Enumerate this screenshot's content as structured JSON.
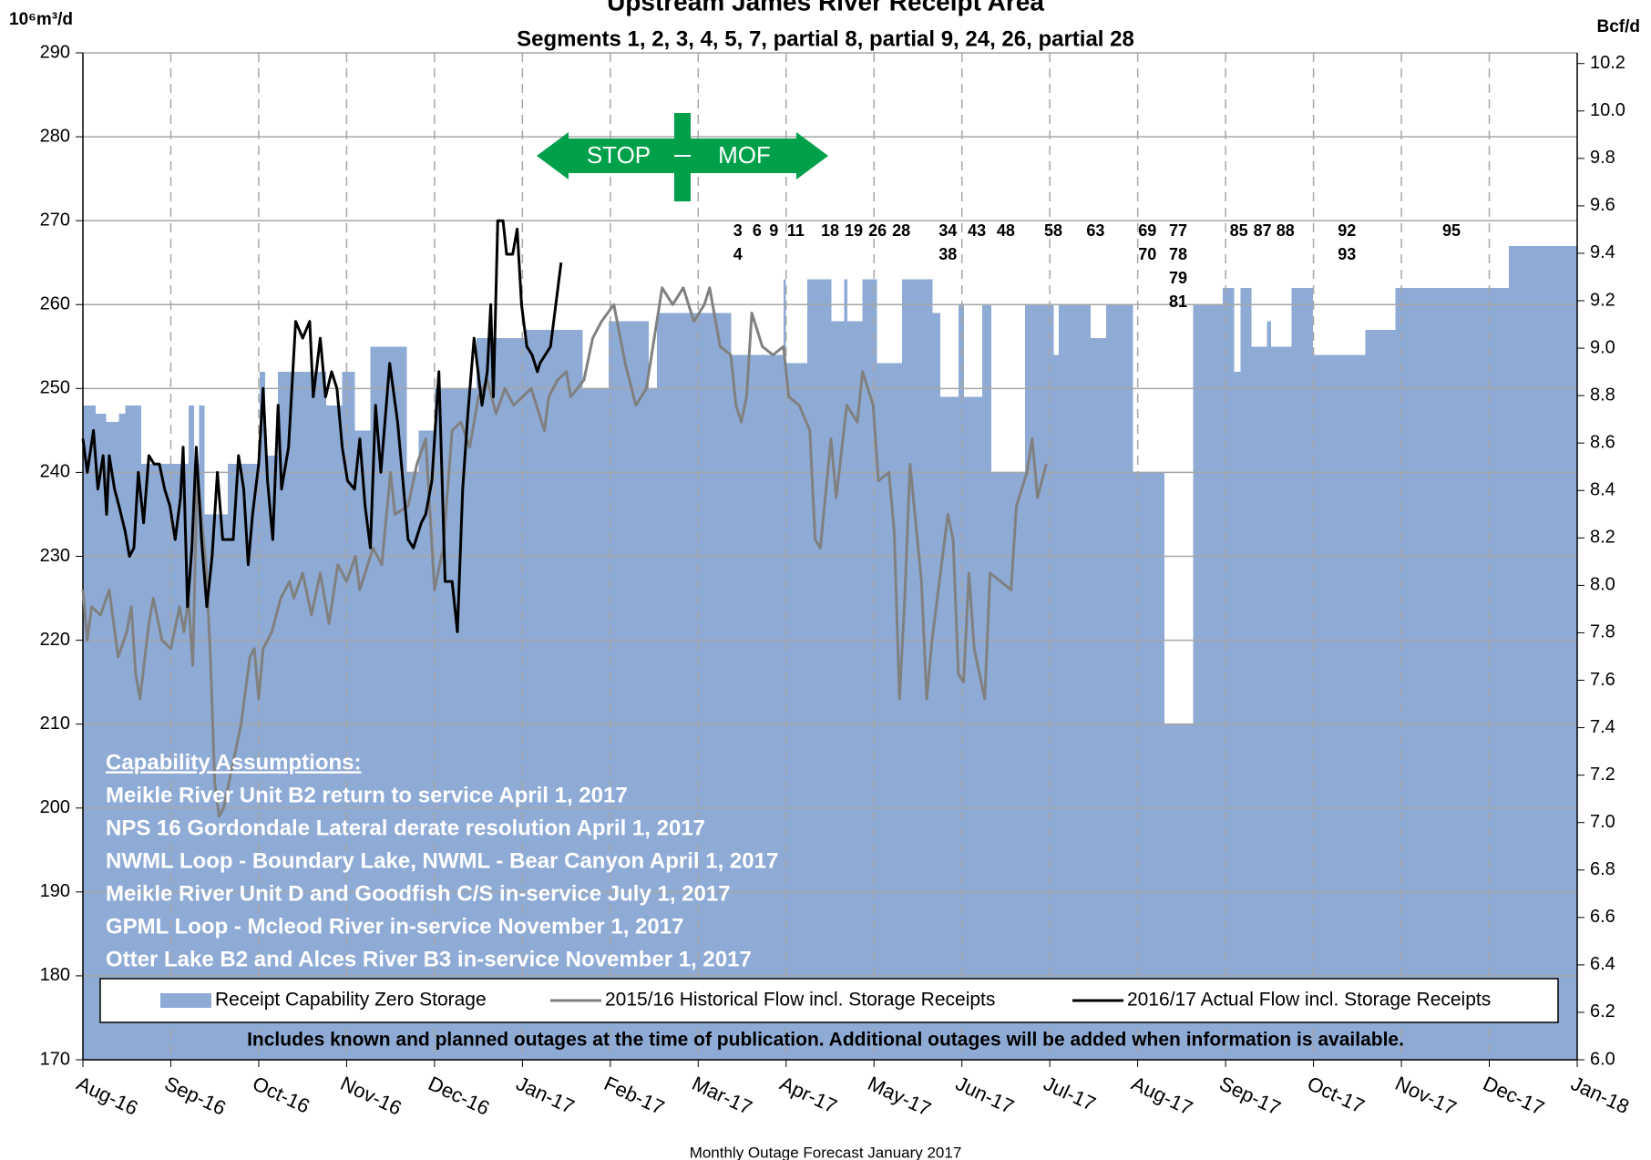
{
  "chart_data": {
    "type": "line",
    "title": "Upstream James River Receipt Area",
    "subtitle": "Segments 1, 2, 3, 4, 5, 7, partial 8, partial 9, 24, 26, partial 28",
    "y_label": "10⁶m³/d",
    "y2_label": "Bcf/d",
    "footer": "Monthly Outage Forecast January 2017",
    "footnote": "Includes known and planned outages at the time of publication. Additional outages will be added when information is available.",
    "legend": "bottom",
    "grid": true,
    "xlim": [
      0,
      17
    ],
    "xticks": [
      {
        "value": 0,
        "label": "Aug-16"
      },
      {
        "value": 1,
        "label": "Sep-16"
      },
      {
        "value": 2,
        "label": "Oct-16"
      },
      {
        "value": 3,
        "label": "Nov-16"
      },
      {
        "value": 4,
        "label": "Dec-16"
      },
      {
        "value": 5,
        "label": "Jan-17"
      },
      {
        "value": 6,
        "label": "Feb-17"
      },
      {
        "value": 7,
        "label": "Mar-17"
      },
      {
        "value": 8,
        "label": "Apr-17"
      },
      {
        "value": 9,
        "label": "May-17"
      },
      {
        "value": 10,
        "label": "Jun-17"
      },
      {
        "value": 11,
        "label": "Jul-17"
      },
      {
        "value": 12,
        "label": "Aug-17"
      },
      {
        "value": 13,
        "label": "Sep-17"
      },
      {
        "value": 14,
        "label": "Oct-17"
      },
      {
        "value": 15,
        "label": "Nov-17"
      },
      {
        "value": 16,
        "label": "Dec-17"
      },
      {
        "value": 17,
        "label": "Jan-18"
      }
    ],
    "ylim": [
      170,
      290
    ],
    "yticks": [
      170,
      180,
      190,
      200,
      210,
      220,
      230,
      240,
      250,
      260,
      270,
      280,
      290
    ],
    "y2lim": [
      6.0,
      10.245
    ],
    "y2ticks": [
      {
        "value": 6.0,
        "label": "6.0"
      },
      {
        "value": 6.2,
        "label": "6.2"
      },
      {
        "value": 6.4,
        "label": "6.4"
      },
      {
        "value": 6.6,
        "label": "6.6"
      },
      {
        "value": 6.8,
        "label": "6.8"
      },
      {
        "value": 7.0,
        "label": "7.0"
      },
      {
        "value": 7.2,
        "label": "7.2"
      },
      {
        "value": 7.4,
        "label": "7.4"
      },
      {
        "value": 7.6,
        "label": "7.6"
      },
      {
        "value": 7.8,
        "label": "7.8"
      },
      {
        "value": 8.0,
        "label": "8.0"
      },
      {
        "value": 8.2,
        "label": "8.2"
      },
      {
        "value": 8.4,
        "label": "8.4"
      },
      {
        "value": 8.6,
        "label": "8.6"
      },
      {
        "value": 8.8,
        "label": "8.8"
      },
      {
        "value": 9.0,
        "label": "9.0"
      },
      {
        "value": 9.2,
        "label": "9.2"
      },
      {
        "value": 9.4,
        "label": "9.4"
      },
      {
        "value": 9.6,
        "label": "9.6"
      },
      {
        "value": 9.8,
        "label": "9.8"
      },
      {
        "value": 10.0,
        "label": "10.0"
      },
      {
        "value": 10.2,
        "label": "10.2"
      }
    ],
    "series": [
      {
        "name": "Receipt Capability Zero Storage",
        "type": "area",
        "color": "#8eabd6",
        "x": [
          0,
          0.14,
          0.26,
          0.41,
          0.48,
          0.66,
          1.2,
          1.26,
          1.32,
          1.38,
          1.65,
          2.01,
          2.07,
          2.22,
          2.76,
          2.95,
          3.09,
          3.27,
          3.68,
          3.82,
          4.0,
          4.48,
          5.02,
          5.68,
          5.98,
          6.43,
          6.53,
          7.37,
          7.97,
          7.99,
          8.24,
          8.51,
          8.66,
          8.69,
          8.87,
          9.03,
          9.32,
          9.66,
          9.75,
          9.96,
          10.02,
          10.23,
          10.33,
          10.72,
          11.04,
          11.1,
          11.46,
          11.64,
          11.94,
          12.3,
          12.63,
          12.97,
          13.09,
          13.17,
          13.29,
          13.47,
          13.51,
          13.75,
          13.99,
          14.59,
          14.93,
          16.22
        ],
        "values": [
          248,
          247,
          246,
          247,
          248,
          241,
          248,
          241,
          248,
          235,
          241,
          252,
          242,
          252,
          248,
          252,
          245,
          255,
          240,
          245,
          250,
          256,
          257,
          250,
          258,
          250,
          259,
          254,
          263,
          253,
          263,
          258,
          263,
          258,
          263,
          253,
          263,
          259,
          249,
          260,
          249,
          260,
          240,
          260,
          254,
          260,
          256,
          260,
          240,
          210,
          260,
          262,
          252,
          262,
          255,
          258,
          255,
          262,
          254,
          257,
          262,
          267
        ]
      },
      {
        "name": "2015/16 Historical Flow incl. Storage Receipts",
        "type": "line",
        "color": "#808080",
        "x": [
          0,
          0.05,
          0.1,
          0.2,
          0.3,
          0.4,
          0.5,
          0.55,
          0.6,
          0.65,
          0.75,
          0.8,
          0.9,
          1.0,
          1.1,
          1.15,
          1.2,
          1.25,
          1.3,
          1.4,
          1.45,
          1.5,
          1.55,
          1.6,
          1.7,
          1.8,
          1.9,
          1.95,
          2.0,
          2.05,
          2.15,
          2.25,
          2.35,
          2.4,
          2.5,
          2.6,
          2.7,
          2.8,
          2.9,
          3.0,
          3.1,
          3.15,
          3.3,
          3.4,
          3.5,
          3.55,
          3.7,
          3.8,
          3.9,
          4.0,
          4.1,
          4.2,
          4.3,
          4.4,
          4.5,
          4.6,
          4.7,
          4.8,
          4.9,
          5.0,
          5.1,
          5.25,
          5.3,
          5.4,
          5.5,
          5.55,
          5.7,
          5.8,
          5.9,
          6.04,
          6.17,
          6.29,
          6.41,
          6.59,
          6.71,
          6.83,
          6.95,
          7.07,
          7.13,
          7.25,
          7.37,
          7.43,
          7.49,
          7.55,
          7.61,
          7.73,
          7.85,
          7.97,
          8.03,
          8.15,
          8.27,
          8.33,
          8.39,
          8.51,
          8.57,
          8.69,
          8.81,
          8.87,
          8.99,
          9.05,
          9.17,
          9.23,
          9.29,
          9.35,
          9.41,
          9.54,
          9.6,
          9.66,
          9.72,
          9.78,
          9.84,
          9.9,
          9.96,
          10.02,
          10.08,
          10.14,
          10.2,
          10.26,
          10.32,
          10.44,
          10.56,
          10.62,
          10.74,
          10.8,
          10.86,
          10.96
        ],
        "values": [
          226,
          220,
          224,
          223,
          226,
          218,
          221,
          224,
          216,
          213,
          222,
          225,
          220,
          219,
          224,
          221,
          225,
          217,
          240,
          229,
          218,
          203,
          199,
          200,
          205,
          210,
          218,
          219,
          213,
          219,
          221,
          225,
          227,
          225,
          228,
          223,
          228,
          222,
          229,
          227,
          230,
          226,
          231,
          229,
          240,
          235,
          236,
          241,
          244,
          226,
          231,
          245,
          246,
          243,
          249,
          251,
          247,
          250,
          248,
          249,
          250,
          245,
          249,
          251,
          252,
          249,
          251,
          256,
          258,
          260,
          253,
          248,
          250,
          262,
          260,
          262,
          258,
          260,
          262,
          255,
          254,
          248,
          246,
          249,
          259,
          255,
          254,
          255,
          249,
          248,
          245,
          232,
          231,
          244,
          237,
          248,
          246,
          252,
          248,
          239,
          240,
          233,
          213,
          225,
          241,
          227,
          213,
          220,
          225,
          230,
          235,
          232,
          216,
          215,
          228,
          219,
          216,
          213,
          228,
          227,
          226,
          236,
          240,
          244,
          237,
          241
        ]
      },
      {
        "name": "2016/17 Actual Flow incl. Storage Receipts",
        "type": "line",
        "color": "#000000",
        "x": [
          0,
          0.05,
          0.12,
          0.17,
          0.23,
          0.27,
          0.3,
          0.36,
          0.41,
          0.48,
          0.53,
          0.58,
          0.63,
          0.69,
          0.75,
          0.81,
          0.87,
          0.93,
          0.99,
          1.05,
          1.11,
          1.14,
          1.19,
          1.24,
          1.29,
          1.35,
          1.41,
          1.47,
          1.53,
          1.59,
          1.65,
          1.71,
          1.77,
          1.83,
          1.88,
          1.93,
          2.0,
          2.05,
          2.1,
          2.16,
          2.22,
          2.26,
          2.34,
          2.42,
          2.5,
          2.58,
          2.62,
          2.7,
          2.76,
          2.83,
          2.89,
          2.95,
          3.01,
          3.09,
          3.15,
          3.21,
          3.27,
          3.33,
          3.39,
          3.49,
          3.58,
          3.64,
          3.7,
          3.76,
          3.85,
          3.9,
          3.97,
          4.05,
          4.12,
          4.2,
          4.26,
          4.32,
          4.38,
          4.45,
          4.54,
          4.6,
          4.64,
          4.67,
          4.72,
          4.78,
          4.82,
          4.89,
          4.94,
          4.99,
          5.05,
          5.11,
          5.17,
          5.2,
          5.26,
          5.32,
          5.38,
          5.44
        ],
        "values": [
          244,
          240,
          245,
          238,
          242,
          235,
          242,
          238,
          236,
          233,
          230,
          231,
          240,
          234,
          242,
          241,
          241,
          238,
          236,
          232,
          237,
          243,
          224,
          231,
          243,
          232,
          224,
          230,
          240,
          232,
          232,
          232,
          242,
          238,
          229,
          235,
          241,
          250,
          239,
          232,
          248,
          238,
          243,
          258,
          256,
          258,
          249,
          256,
          249,
          252,
          250,
          243,
          239,
          238,
          244,
          236,
          231,
          248,
          240,
          253,
          246,
          239,
          232,
          231,
          234,
          235,
          239,
          252,
          227,
          227,
          221,
          238,
          247,
          256,
          248,
          252,
          260,
          249,
          270,
          270,
          266,
          266,
          269,
          260,
          255,
          254,
          252,
          253,
          254,
          255,
          260,
          265
        ]
      }
    ],
    "direction_marker": {
      "left": "STOP",
      "right": "MOF"
    },
    "outage_labels": [
      {
        "x": 7.45,
        "labels": [
          "3",
          "4"
        ]
      },
      {
        "x": 7.67,
        "labels": [
          "6"
        ]
      },
      {
        "x": 7.86,
        "labels": [
          "9"
        ]
      },
      {
        "x": 8.11,
        "labels": [
          "11"
        ]
      },
      {
        "x": 8.5,
        "labels": [
          "18"
        ]
      },
      {
        "x": 8.77,
        "labels": [
          "19"
        ]
      },
      {
        "x": 9.04,
        "labels": [
          "26"
        ]
      },
      {
        "x": 9.31,
        "labels": [
          "28"
        ]
      },
      {
        "x": 9.84,
        "labels": [
          "34",
          "38"
        ]
      },
      {
        "x": 10.17,
        "labels": [
          "43"
        ]
      },
      {
        "x": 10.5,
        "labels": [
          "48"
        ]
      },
      {
        "x": 11.04,
        "labels": [
          "58"
        ]
      },
      {
        "x": 11.52,
        "labels": [
          "63"
        ]
      },
      {
        "x": 12.11,
        "labels": [
          "69",
          "70"
        ]
      },
      {
        "x": 12.46,
        "labels": [
          "77",
          "78",
          "79",
          "81"
        ]
      },
      {
        "x": 13.15,
        "labels": [
          "85"
        ]
      },
      {
        "x": 13.42,
        "labels": [
          "87"
        ]
      },
      {
        "x": 13.68,
        "labels": [
          "88"
        ]
      },
      {
        "x": 14.38,
        "labels": [
          "92",
          "93"
        ]
      },
      {
        "x": 15.57,
        "labels": [
          "95"
        ]
      }
    ],
    "assumptions": {
      "heading": "Capability Assumptions:",
      "items": [
        "Meikle River Unit B2 return to service April 1, 2017",
        "NPS 16 Gordondale Lateral derate resolution April 1, 2017",
        "NWML Loop - Boundary Lake, NWML - Bear Canyon April 1, 2017",
        "Meikle River Unit D and Goodfish C/S in-service July 1, 2017",
        "GPML Loop - Mcleod River in-service  November 1, 2017",
        "Otter Lake B2 and Alces River B3 in-service  November 1, 2017"
      ]
    }
  }
}
